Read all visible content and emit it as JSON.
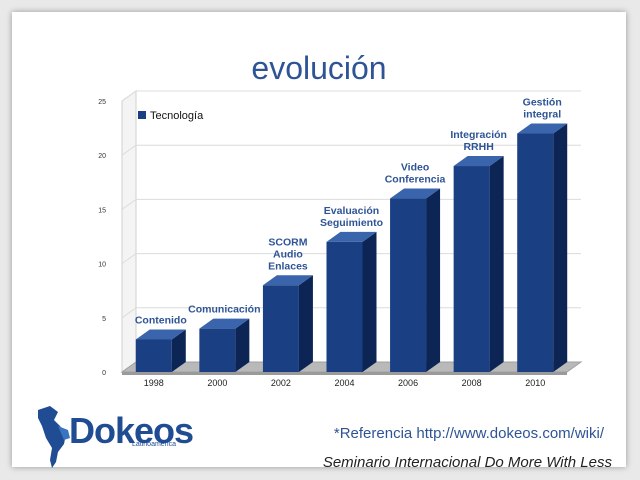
{
  "slide": {
    "title": "evolución",
    "reference": "*Referencia http://www.dokeos.com/wiki/",
    "footer": "Seminario Internacional Do More With Less",
    "logo": {
      "name": "Dokeos",
      "subtitle": "Latinoamérica"
    }
  },
  "colors": {
    "title": "#2e5495",
    "bar_front": "#1a3f82",
    "bar_side": "#0c2555",
    "bar_top": "#3a64ac",
    "annotation": "#2e5495",
    "grid": "#dcdcdc"
  },
  "chart_data": {
    "type": "bar",
    "categories": [
      "1998",
      "2000",
      "2002",
      "2004",
      "2006",
      "2008",
      "2010"
    ],
    "series": [
      {
        "name": "Tecnología",
        "values": [
          3,
          4,
          8,
          12,
          16,
          19,
          22
        ]
      }
    ],
    "annotations": [
      [
        "Contenido"
      ],
      [
        "Comunicación"
      ],
      [
        "SCORM",
        "Audio",
        "Enlaces"
      ],
      [
        "Evaluación",
        "Seguimiento"
      ],
      [
        "Video",
        "Conferencia"
      ],
      [
        "Integración",
        "RRHH"
      ],
      [
        "Gestión",
        "integral"
      ]
    ],
    "yticks": [
      0,
      5,
      10,
      15,
      20,
      25
    ],
    "ylim": [
      0,
      25
    ],
    "grid": true,
    "legend": "top-left",
    "style": "3d"
  }
}
